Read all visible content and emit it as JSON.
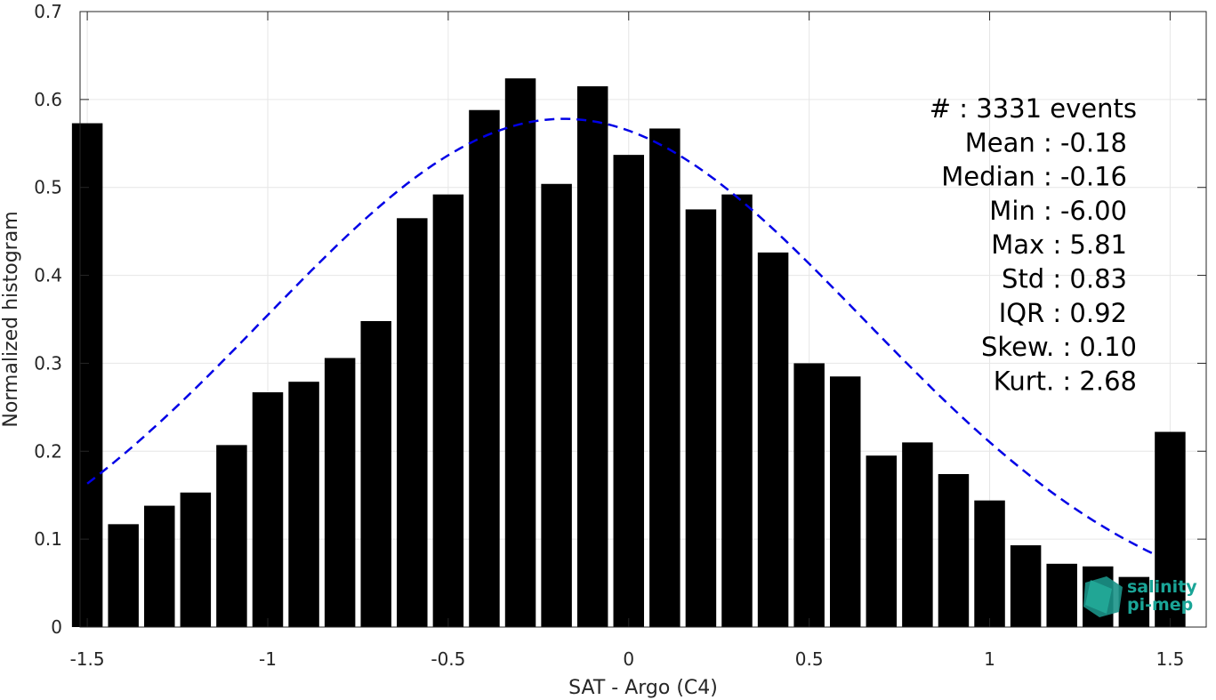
{
  "chart_data": {
    "type": "bar",
    "title": "",
    "xlabel": "SAT - Argo (C4)",
    "ylabel": "Normalized histogram",
    "xlim": [
      -1.52,
      1.6
    ],
    "ylim": [
      0,
      0.7
    ],
    "xticks": [
      -1.5,
      -1,
      -0.5,
      0,
      0.5,
      1,
      1.5
    ],
    "xtick_labels": [
      "-1.5",
      "-1",
      "-0.5",
      "0",
      "0.5",
      "1",
      "1.5"
    ],
    "yticks": [
      0,
      0.1,
      0.2,
      0.3,
      0.4,
      0.5,
      0.6,
      0.7
    ],
    "ytick_labels": [
      "0",
      "0.1",
      "0.2",
      "0.3",
      "0.4",
      "0.5",
      "0.6",
      "0.7"
    ],
    "grid": true,
    "bar_color": "#000000",
    "bar_width": 0.085,
    "bars": {
      "x": [
        -1.5,
        -1.4,
        -1.3,
        -1.2,
        -1.1,
        -1.0,
        -0.9,
        -0.8,
        -0.7,
        -0.6,
        -0.5,
        -0.4,
        -0.3,
        -0.2,
        -0.1,
        0.0,
        0.1,
        0.2,
        0.3,
        0.4,
        0.5,
        0.6,
        0.7,
        0.8,
        0.9,
        1.0,
        1.1,
        1.2,
        1.3,
        1.4,
        1.5
      ],
      "values": [
        0.573,
        0.117,
        0.138,
        0.153,
        0.207,
        0.267,
        0.279,
        0.306,
        0.348,
        0.465,
        0.492,
        0.588,
        0.624,
        0.504,
        0.615,
        0.537,
        0.567,
        0.475,
        0.492,
        0.426,
        0.3,
        0.285,
        0.195,
        0.21,
        0.174,
        0.144,
        0.093,
        0.072,
        0.069,
        0.057,
        0.222
      ]
    },
    "fit_curve": {
      "style": "dashed",
      "color": "#0000e6",
      "mean": -0.18,
      "std": 0.83,
      "peak": 0.578,
      "x_range": [
        -1.5,
        1.45
      ]
    },
    "annotations": [
      {
        "label": "#",
        "value": ": 3331 events"
      },
      {
        "label": "Mean",
        "value": ": -0.18"
      },
      {
        "label": "Median",
        "value": ": -0.16"
      },
      {
        "label": "Min",
        "value": ": -6.00"
      },
      {
        "label": "Max",
        "value": ": 5.81"
      },
      {
        "label": "Std",
        "value": ": 0.83"
      },
      {
        "label": "IQR",
        "value": ": 0.92"
      },
      {
        "label": "Skew.",
        "value": ": 0.10"
      },
      {
        "label": "Kurt.",
        "value": ": 2.68"
      }
    ]
  },
  "logo": {
    "line1": "salinity",
    "line2": "pi-mep",
    "color": "#1aa597"
  }
}
